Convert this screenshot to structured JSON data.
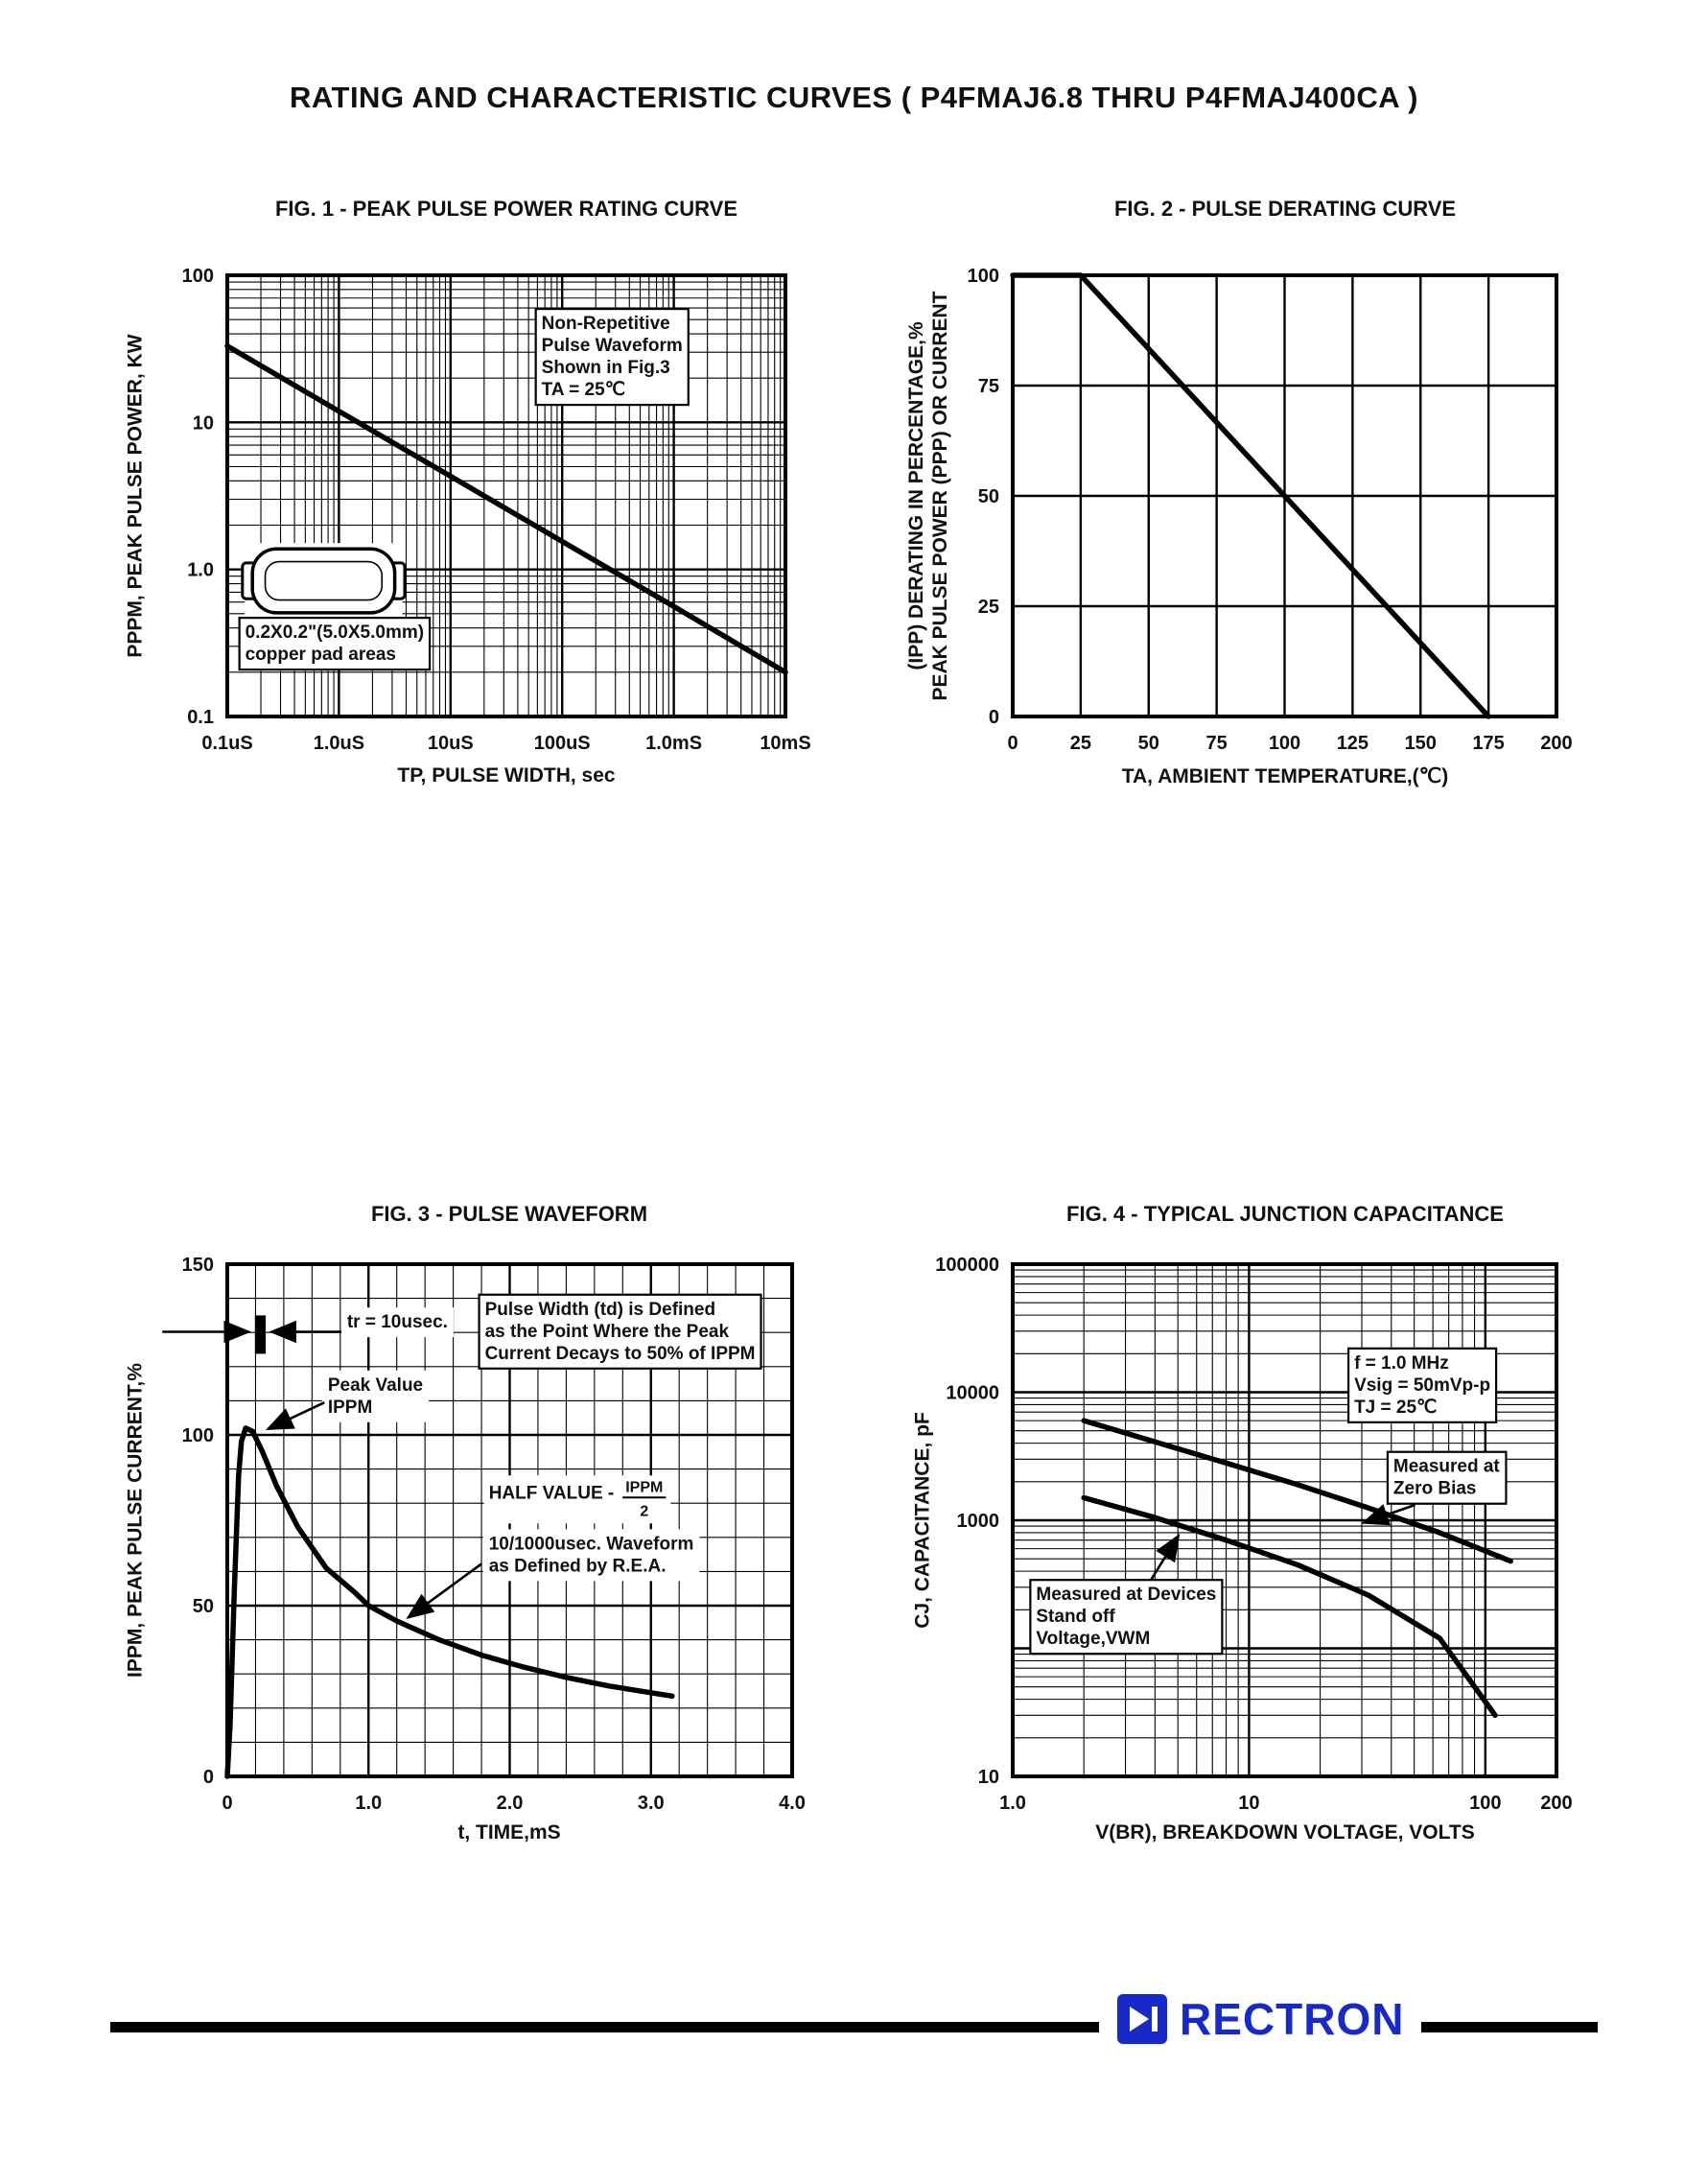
{
  "page": {
    "title": "RATING AND CHARACTERISTIC CURVES ( P4FMAJ6.8 THRU P4FMAJ400CA )",
    "footer": {
      "brand": "RECTRON",
      "brand_color": "#1729c9"
    }
  },
  "chart_data": [
    {
      "id": "fig1",
      "type": "line",
      "title": "FIG. 1 - PEAK PULSE POWER RATING CURVE",
      "xlabel": "TP, PULSE WIDTH, sec",
      "ylabel": "PPPM, PEAK PULSE POWER, KW",
      "x": {
        "scale": "log",
        "min": 1e-07,
        "max": 0.01,
        "ticks": [
          {
            "v": 1e-07,
            "label": "0.1uS"
          },
          {
            "v": 1e-06,
            "label": "1.0uS"
          },
          {
            "v": 1e-05,
            "label": "10uS"
          },
          {
            "v": 0.0001,
            "label": "100uS"
          },
          {
            "v": 0.001,
            "label": "1.0mS"
          },
          {
            "v": 0.01,
            "label": "10mS"
          }
        ]
      },
      "y": {
        "scale": "log",
        "min": 0.1,
        "max": 100,
        "ticks": [
          {
            "v": 100,
            "label": "100"
          },
          {
            "v": 10,
            "label": "10"
          },
          {
            "v": 1,
            "label": "1.0"
          },
          {
            "v": 0.1,
            "label": "0.1"
          }
        ]
      },
      "series": [
        {
          "name": "peak-pulse-power",
          "points": [
            [
              1e-07,
              33
            ],
            [
              1e-06,
              11.9
            ],
            [
              1e-05,
              4.3
            ],
            [
              0.0001,
              1.55
            ],
            [
              0.001,
              0.56
            ],
            [
              0.01,
              0.2
            ]
          ]
        }
      ],
      "annotations": [
        {
          "type": "textbox",
          "boxed": true,
          "fx": 0.563,
          "fy": 0.085,
          "lines": [
            "Non-Repetitive",
            "Pulse Waveform",
            "Shown in Fig.3",
            "TA = 25℃"
          ]
        },
        {
          "type": "package",
          "fx": 0.045,
          "fy": 0.62,
          "fw": 0.255,
          "fh": 0.145
        },
        {
          "type": "textbox",
          "boxed": true,
          "fx": 0.032,
          "fy": 0.785,
          "lines": [
            "0.2X0.2\"(5.0X5.0mm)",
            "copper pad areas"
          ]
        }
      ]
    },
    {
      "id": "fig2",
      "type": "line",
      "title": "FIG. 2 - PULSE DERATING CURVE",
      "xlabel": "TA, AMBIENT TEMPERATURE,(℃)",
      "ylabel_lines": [
        "(IPP) DERATING IN PERCENTAGE,%",
        "PEAK PULSE POWER (PPP) OR CURRENT"
      ],
      "x": {
        "scale": "linear",
        "min": 0,
        "max": 200,
        "ticks": [
          {
            "v": 0,
            "label": "0"
          },
          {
            "v": 25,
            "label": "25"
          },
          {
            "v": 50,
            "label": "50"
          },
          {
            "v": 75,
            "label": "75"
          },
          {
            "v": 100,
            "label": "100"
          },
          {
            "v": 125,
            "label": "125"
          },
          {
            "v": 150,
            "label": "150"
          },
          {
            "v": 175,
            "label": "175"
          },
          {
            "v": 200,
            "label": "200"
          }
        ]
      },
      "y": {
        "scale": "linear",
        "min": 0,
        "max": 100,
        "ticks": [
          {
            "v": 100,
            "label": "100"
          },
          {
            "v": 75,
            "label": "75"
          },
          {
            "v": 50,
            "label": "50"
          },
          {
            "v": 25,
            "label": "25"
          },
          {
            "v": 0,
            "label": "0"
          }
        ]
      },
      "series": [
        {
          "name": "derating",
          "points": [
            [
              0,
              100
            ],
            [
              25,
              100
            ],
            [
              175,
              0
            ]
          ]
        }
      ],
      "annotations": []
    },
    {
      "id": "fig3",
      "type": "line",
      "title": "FIG. 3 - PULSE WAVEFORM",
      "xlabel": "t, TIME,mS",
      "ylabel": "IPPM, PEAK PULSE CURRENT,%",
      "x": {
        "scale": "linear",
        "min": 0,
        "max": 4,
        "minorStep": 0.2,
        "ticks": [
          {
            "v": 0,
            "label": "0"
          },
          {
            "v": 1,
            "label": "1.0"
          },
          {
            "v": 2,
            "label": "2.0"
          },
          {
            "v": 3,
            "label": "3.0"
          },
          {
            "v": 4,
            "label": "4.0"
          }
        ]
      },
      "y": {
        "scale": "linear",
        "min": 0,
        "max": 150,
        "minorStep": 10,
        "ticks": [
          {
            "v": 150,
            "label": "150"
          },
          {
            "v": 100,
            "label": "100"
          },
          {
            "v": 50,
            "label": "50"
          },
          {
            "v": 0,
            "label": "0"
          }
        ]
      },
      "series": [
        {
          "name": "pulse-waveform",
          "points": [
            [
              0,
              0
            ],
            [
              0.02,
              15
            ],
            [
              0.05,
              55
            ],
            [
              0.08,
              88
            ],
            [
              0.1,
              98
            ],
            [
              0.13,
              102
            ],
            [
              0.18,
              101
            ],
            [
              0.25,
              95
            ],
            [
              0.35,
              85
            ],
            [
              0.5,
              73
            ],
            [
              0.7,
              61
            ],
            [
              0.9,
              54
            ],
            [
              1.0,
              50
            ],
            [
              1.2,
              45.5
            ],
            [
              1.5,
              40
            ],
            [
              1.8,
              35.5
            ],
            [
              2.1,
              32
            ],
            [
              2.4,
              29
            ],
            [
              2.7,
              26.5
            ],
            [
              3.0,
              24.5
            ],
            [
              3.15,
              23.5
            ]
          ]
        }
      ],
      "annotations": [
        {
          "type": "rect",
          "fx": 0.049,
          "fy": 0.1,
          "fw": 0.019,
          "fh": 0.075
        },
        {
          "type": "arrow",
          "from": [
            -0.115,
            0.132
          ],
          "to": [
            0.038,
            0.132
          ]
        },
        {
          "type": "text",
          "boxed": false,
          "fx": 0.212,
          "fy": 0.092,
          "lines": [
            "tr = 10usec."
          ]
        },
        {
          "type": "arrow",
          "from": [
            0.202,
            0.132
          ],
          "to": [
            0.078,
            0.132
          ]
        },
        {
          "type": "text",
          "boxed": false,
          "fx": 0.178,
          "fy": 0.215,
          "lines": [
            "Peak Value",
            "IPPM"
          ]
        },
        {
          "type": "arrow",
          "from": [
            0.172,
            0.27
          ],
          "to": [
            0.072,
            0.322
          ]
        },
        {
          "type": "textbox",
          "boxed": true,
          "fx": 0.456,
          "fy": 0.067,
          "lines": [
            "Pulse Width (td) is Defined",
            "as the Point Where the Peak",
            "Current Decays to 50% of IPPM"
          ]
        },
        {
          "type": "fraction",
          "fx": 0.463,
          "fy": 0.42,
          "prefix": "HALF VALUE -",
          "num": "IPPM",
          "den": "2"
        },
        {
          "type": "text",
          "boxed": false,
          "fx": 0.463,
          "fy": 0.525,
          "lines": [
            "10/1000usec. Waveform",
            "as Defined by R.E.A."
          ]
        },
        {
          "type": "arrow",
          "from": [
            0.45,
            0.585
          ],
          "to": [
            0.32,
            0.69
          ]
        }
      ]
    },
    {
      "id": "fig4",
      "type": "line",
      "title": "FIG. 4 - TYPICAL JUNCTION CAPACITANCE",
      "xlabel": "V(BR), BREAKDOWN VOLTAGE, VOLTS",
      "ylabel": "CJ, CAPACITANCE, pF",
      "x": {
        "scale": "log",
        "min": 1,
        "max": 200,
        "ticks": [
          {
            "v": 1,
            "label": "1.0"
          },
          {
            "v": 10,
            "label": "10"
          },
          {
            "v": 100,
            "label": "100"
          },
          {
            "v": 200,
            "label": "200"
          }
        ]
      },
      "y": {
        "scale": "log",
        "min": 10,
        "max": 100000,
        "ticks": [
          {
            "v": 100000,
            "label": "100000"
          },
          {
            "v": 10000,
            "label": "10000"
          },
          {
            "v": 1000,
            "label": "1000"
          },
          {
            "v": 10,
            "label": "10"
          }
        ]
      },
      "series": [
        {
          "name": "measured-at-zero-bias",
          "points": [
            [
              2,
              6000
            ],
            [
              4,
              4100
            ],
            [
              8,
              2800
            ],
            [
              16,
              1900
            ],
            [
              32,
              1250
            ],
            [
              64,
              800
            ],
            [
              128,
              480
            ]
          ]
        },
        {
          "name": "measured-at-standoff-voltage",
          "points": [
            [
              2,
              1500
            ],
            [
              4,
              1050
            ],
            [
              8,
              700
            ],
            [
              16,
              450
            ],
            [
              32,
              260
            ],
            [
              64,
              120
            ],
            [
              110,
              30
            ]
          ]
        }
      ],
      "annotations": [
        {
          "type": "textbox",
          "boxed": true,
          "fx": 0.628,
          "fy": 0.172,
          "lines": [
            "f = 1.0 MHz",
            "Vsig = 50mVp-p",
            "TJ = 25℃"
          ]
        },
        {
          "type": "textbox",
          "boxed": true,
          "fx": 0.7,
          "fy": 0.374,
          "lines": [
            "Measured at",
            "Zero Bias"
          ]
        },
        {
          "type": "arrow",
          "from": [
            0.74,
            0.47
          ],
          "to": [
            0.645,
            0.505
          ]
        },
        {
          "type": "textbox",
          "boxed": true,
          "fx": 0.043,
          "fy": 0.624,
          "lines": [
            "Measured at Devices",
            "Stand off",
            "Voltage,VWM"
          ]
        },
        {
          "type": "arrow",
          "from": [
            0.255,
            0.615
          ],
          "to": [
            0.305,
            0.53
          ]
        }
      ]
    }
  ]
}
